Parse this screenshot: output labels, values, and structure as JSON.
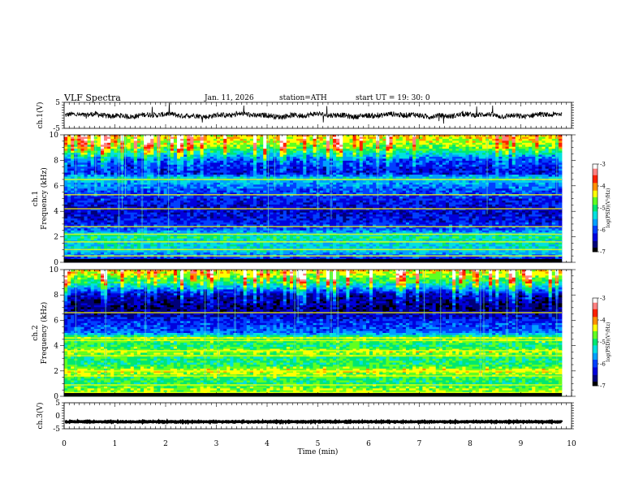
{
  "header": {
    "title": "VLF  Spectra",
    "date": "Jan. 11, 2026",
    "station": "station=ATH",
    "start": "start  UT  =   19: 30: 0"
  },
  "colors": {
    "scale": [
      "#000000",
      "#00007a",
      "#0000dd",
      "#0040ff",
      "#00a0ff",
      "#00e0e0",
      "#00e870",
      "#60ff20",
      "#ffff00",
      "#ff9000",
      "#ff2000",
      "#ff8080",
      "#ffffff"
    ]
  },
  "chart_data": {
    "type": "heatmap",
    "xlabel": "Time  (min)",
    "xlim": [
      0,
      10
    ],
    "x_ticks": [
      "0",
      "1",
      "2",
      "3",
      "4",
      "5",
      "6",
      "7",
      "8",
      "9",
      "10"
    ],
    "time_series": [
      {
        "name": "ch.1",
        "ylabel": "ch.1(V)",
        "ylim": [
          -5,
          5
        ],
        "y_ticks": [
          "5",
          "-5"
        ],
        "baseline": 0,
        "noise": 1.0
      },
      {
        "name": "ch.3",
        "ylabel": "ch.3(V)",
        "ylim": [
          -5,
          5
        ],
        "y_ticks": [
          "5",
          "0",
          "-5"
        ],
        "baseline": -2.3,
        "noise": 0.15
      }
    ],
    "spectrograms": [
      {
        "name": "ch.1",
        "ylabel": "ch.1\nFrequency (kHz)",
        "ylim": [
          0,
          10
        ],
        "y_ticks": [
          "10",
          "8",
          "6",
          "4",
          "2",
          "0"
        ],
        "colorbar": {
          "label": "log(PSD)(V²/Hz)",
          "range": [
            -7,
            -3
          ],
          "ticks": [
            "-3",
            "-4",
            "-5",
            "-6",
            "-7"
          ]
        },
        "profile_khz": [
          [
            0,
            1.0
          ],
          [
            0.5,
            3.5
          ],
          [
            1.0,
            5.0
          ],
          [
            1.6,
            5.0
          ],
          [
            2.0,
            6.0
          ],
          [
            2.5,
            3.5
          ],
          [
            3.0,
            2.5
          ],
          [
            4.0,
            1.8
          ],
          [
            5.0,
            2.5
          ],
          [
            5.6,
            3.0
          ],
          [
            6.0,
            3.8
          ],
          [
            6.6,
            5.0
          ],
          [
            7.0,
            2.0
          ],
          [
            8.0,
            3.0
          ],
          [
            9.0,
            7.0
          ],
          [
            10.0,
            8.5
          ]
        ],
        "lines_khz": [
          0.5,
          1.0,
          1.6,
          2.2,
          2.8,
          4.2,
          5.3,
          6.5
        ]
      },
      {
        "name": "ch.2",
        "ylabel": "ch.2\nFrequency (kHz)",
        "ylim": [
          0,
          10
        ],
        "y_ticks": [
          "10",
          "8",
          "6",
          "4",
          "2",
          "0"
        ],
        "colorbar": {
          "label": "log(PSD)(V²/Hz)",
          "range": [
            -7,
            -3
          ],
          "ticks": [
            "-3",
            "-4",
            "-5",
            "-6",
            "-7"
          ]
        },
        "profile_khz": [
          [
            0,
            6.0
          ],
          [
            0.5,
            7.5
          ],
          [
            1.0,
            6.0
          ],
          [
            1.5,
            6.5
          ],
          [
            2.0,
            8.0
          ],
          [
            2.5,
            6.0
          ],
          [
            3.0,
            6.0
          ],
          [
            3.5,
            7.5
          ],
          [
            4.0,
            6.0
          ],
          [
            4.6,
            7.0
          ],
          [
            5.0,
            3.5
          ],
          [
            5.5,
            3.0
          ],
          [
            6.0,
            2.5
          ],
          [
            6.5,
            1.5
          ],
          [
            7.0,
            0.8
          ],
          [
            8.0,
            1.5
          ],
          [
            9.0,
            6.0
          ],
          [
            10.0,
            8.5
          ]
        ],
        "lines_khz": [
          0.3,
          0.9,
          1.6,
          2.0,
          3.2,
          3.6,
          4.4,
          4.6,
          6.6
        ]
      }
    ]
  }
}
